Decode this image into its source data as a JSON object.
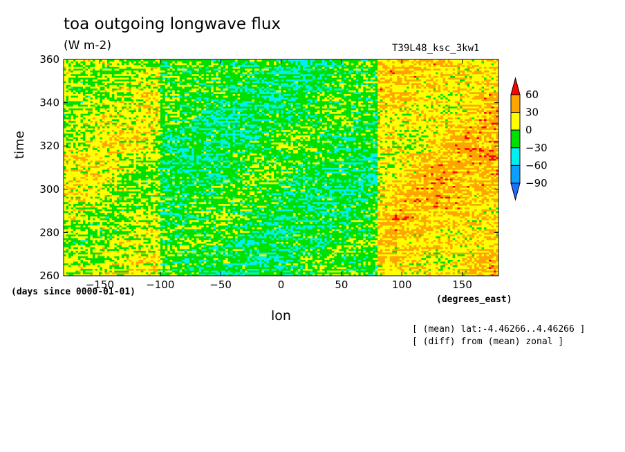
{
  "chart_data": {
    "type": "heatmap",
    "title": "toa outgoing longwave flux",
    "units": "(W m-2)",
    "run_label": "T39L48_ksc_3kw1",
    "xlabel": "lon",
    "ylabel": "time",
    "x_units": "(degrees_east)",
    "y_units": "(days since 0000-01-01)",
    "xlim": [
      -180,
      180
    ],
    "ylim": [
      260,
      360
    ],
    "x_ticks": [
      -150,
      -100,
      -50,
      0,
      50,
      100,
      150
    ],
    "y_ticks": [
      260,
      280,
      300,
      320,
      340,
      360
    ],
    "colorbar": {
      "levels": [
        -90,
        -60,
        -30,
        0,
        30,
        60
      ],
      "colors": [
        "#1e6eff",
        "#0aa0ff",
        "#00f0f0",
        "#00e000",
        "#ffff00",
        "#ffa500",
        "#ff0000"
      ],
      "extend": "both"
    },
    "annotations": [
      "[ (mean) lat:-4.46266..4.46266 ]",
      "[ (diff) from (mean) zonal ]"
    ],
    "description_bands": [
      {
        "lon": [
          -180,
          -100
        ],
        "class": "mixed 0 to 30"
      },
      {
        "lon": [
          -100,
          80
        ],
        "class": "mostly -30 to 0, patches -60 to -30"
      },
      {
        "lon": [
          80,
          180
        ],
        "class": "mostly 0 to 60, streaks above 60"
      }
    ]
  }
}
